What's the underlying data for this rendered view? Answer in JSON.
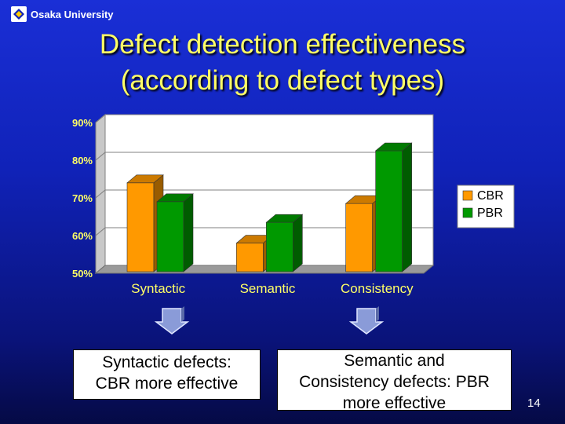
{
  "header": {
    "org": "Osaka University",
    "title_line1": "Defect detection effectiveness",
    "title_line2": "(according to defect types)"
  },
  "colors": {
    "cbr": "#ff9900",
    "pbr": "#009900",
    "title": "#ffff66",
    "axis_label": "#ffff66",
    "category_label": "#ffff66"
  },
  "chart_data": {
    "type": "bar",
    "title": "",
    "xlabel": "",
    "ylabel": "",
    "categories": [
      "Syntactic",
      "Semantic",
      "Consistency"
    ],
    "series": [
      {
        "name": "CBR",
        "values": [
          74,
          58,
          68.5
        ]
      },
      {
        "name": "PBR",
        "values": [
          69,
          63.5,
          82.5
        ]
      }
    ],
    "ylim": [
      50,
      90
    ],
    "yticks": [
      "50%",
      "60%",
      "70%",
      "80%",
      "90%"
    ],
    "ytick_values": [
      50,
      60,
      70,
      80,
      90
    ],
    "grid": true,
    "legend": "right"
  },
  "notes": {
    "left_line1": "Syntactic defects:",
    "left_line2": "CBR more effective",
    "right_line1": "Semantic and",
    "right_line2": "Consistency defects: PBR",
    "right_line3": "more effective"
  },
  "page_number": "14"
}
